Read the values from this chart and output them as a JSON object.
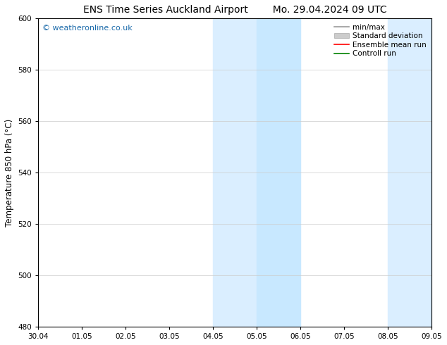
{
  "title_left": "ENS Time Series Auckland Airport",
  "title_right": "Mo. 29.04.2024 09 UTC",
  "ylabel": "Temperature 850 hPa (°C)",
  "ylim": [
    480,
    600
  ],
  "yticks": [
    480,
    500,
    520,
    540,
    560,
    580,
    600
  ],
  "xlim": [
    0,
    9
  ],
  "xtick_labels": [
    "30.04",
    "01.05",
    "02.05",
    "03.05",
    "04.05",
    "05.05",
    "06.05",
    "07.05",
    "08.05",
    "09.05"
  ],
  "xtick_positions": [
    0,
    1,
    2,
    3,
    4,
    5,
    6,
    7,
    8,
    9
  ],
  "shaded_bands": [
    {
      "xmin": 4.0,
      "xmax": 5.0,
      "color": "#daeeff"
    },
    {
      "xmin": 5.0,
      "xmax": 6.0,
      "color": "#c8e8ff"
    },
    {
      "xmin": 8.0,
      "xmax": 9.0,
      "color": "#daeeff"
    },
    {
      "xmin": 9.0,
      "xmax": 9.5,
      "color": "#c8e8ff"
    }
  ],
  "watermark": "© weatheronline.co.uk",
  "watermark_color": "#1a6aaa",
  "legend_items": [
    {
      "label": "min/max",
      "color": "#999999",
      "lw": 1.2,
      "ls": "-",
      "type": "line"
    },
    {
      "label": "Standard deviation",
      "color": "#cccccc",
      "lw": 5,
      "ls": "-",
      "type": "bar"
    },
    {
      "label": "Ensemble mean run",
      "color": "red",
      "lw": 1.2,
      "ls": "-",
      "type": "line"
    },
    {
      "label": "Controll run",
      "color": "green",
      "lw": 1.2,
      "ls": "-",
      "type": "line"
    }
  ],
  "background_color": "#ffffff",
  "axes_bg_color": "#ffffff",
  "grid_color": "#cccccc",
  "title_fontsize": 10,
  "tick_fontsize": 7.5,
  "ylabel_fontsize": 8.5,
  "watermark_fontsize": 8,
  "legend_fontsize": 7.5
}
